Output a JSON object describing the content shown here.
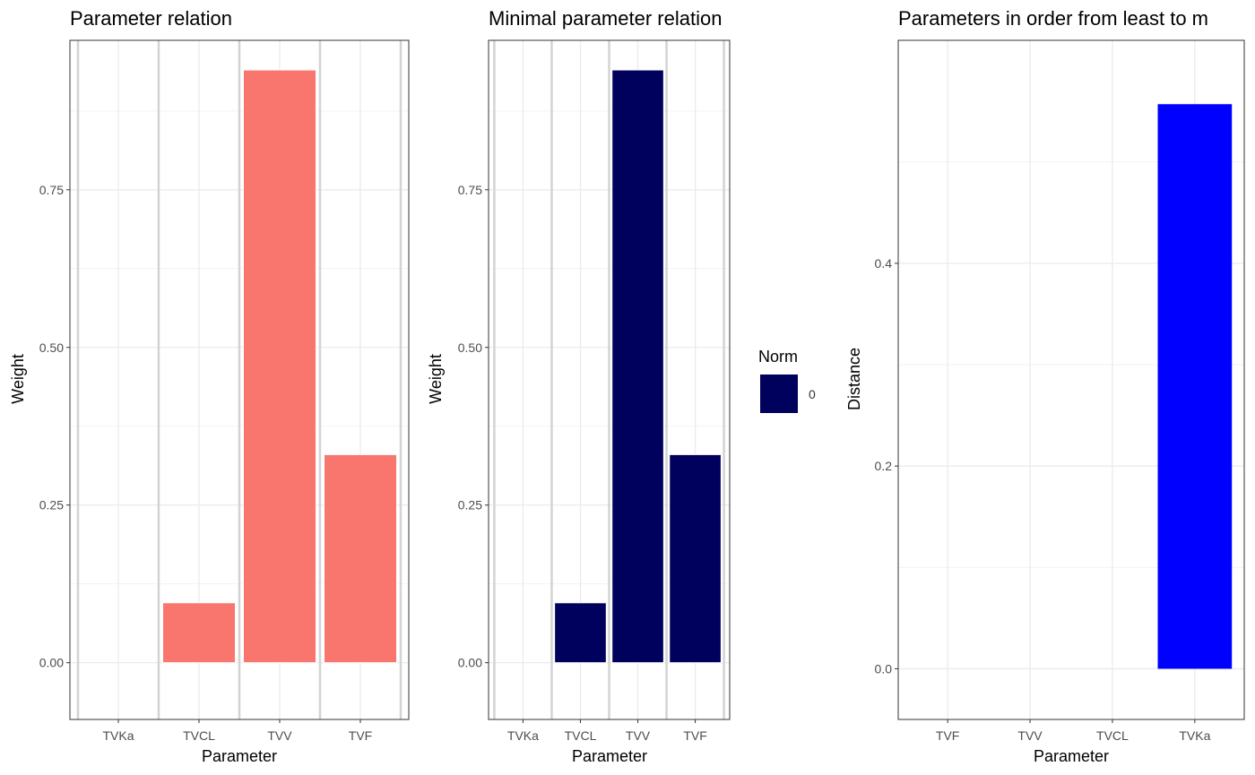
{
  "chart_data": [
    {
      "type": "bar",
      "title": "Parameter relation",
      "xlabel": "Parameter",
      "ylabel": "Weight",
      "categories": [
        "TVKa",
        "TVCL",
        "TVV",
        "TVF"
      ],
      "values": [
        0,
        0.095,
        0.94,
        0.33
      ],
      "ylim": [
        -0.09,
        0.987
      ],
      "yticks": [
        0,
        0.25,
        0.5,
        0.75
      ],
      "ytick_labels": [
        "0.00",
        "0.25",
        "0.50",
        "0.75"
      ],
      "grid": true,
      "bar_color": "#F8766D",
      "separator_lines": true
    },
    {
      "type": "bar",
      "title": "Minimal parameter relation",
      "xlabel": "Parameter",
      "ylabel": "Weight",
      "categories": [
        "TVKa",
        "TVCL",
        "TVV",
        "TVF"
      ],
      "values": [
        0,
        0.095,
        0.94,
        0.33
      ],
      "ylim": [
        -0.09,
        0.987
      ],
      "yticks": [
        0,
        0.25,
        0.5,
        0.75
      ],
      "ytick_labels": [
        "0.00",
        "0.25",
        "0.50",
        "0.75"
      ],
      "grid": true,
      "bar_color": "#00005D",
      "separator_lines": true,
      "legend": {
        "title": "Norm",
        "items": [
          {
            "label": "0",
            "color": "#00005D"
          }
        ],
        "position": "right"
      }
    },
    {
      "type": "bar",
      "title": "Parameters in order from least to m",
      "xlabel": "Parameter",
      "ylabel": "Distance",
      "categories": [
        "TVF",
        "TVV",
        "TVCL",
        "TVKa"
      ],
      "values": [
        0,
        0,
        0,
        0.557
      ],
      "ylim": [
        -0.05,
        0.62
      ],
      "yticks": [
        0,
        0.2,
        0.4
      ],
      "ytick_labels": [
        "0.0",
        "0.2",
        "0.4"
      ],
      "grid": true,
      "bar_color": "#0000FF",
      "separator_lines": false
    }
  ]
}
